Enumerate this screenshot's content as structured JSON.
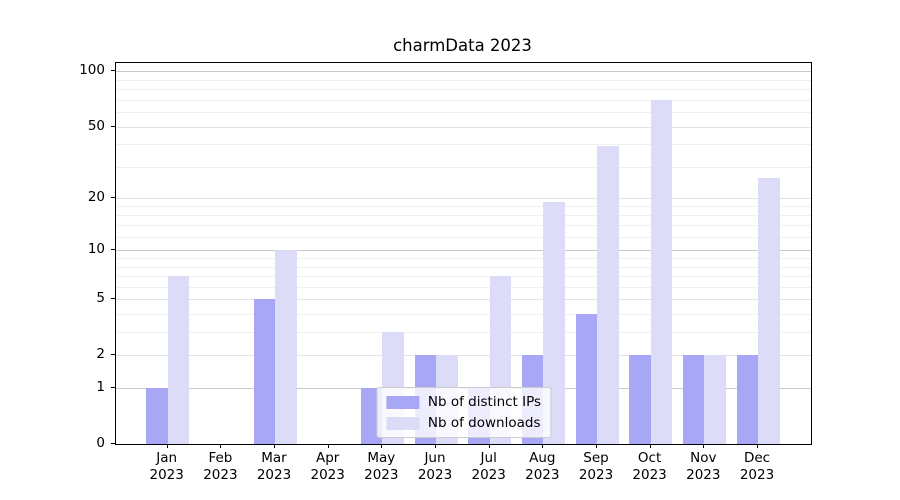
{
  "title": "charmData 2023",
  "chart_data": {
    "type": "bar",
    "title": "charmData 2023",
    "categories": [
      "Jan 2023",
      "Feb 2023",
      "Mar 2023",
      "Apr 2023",
      "May 2023",
      "Jun 2023",
      "Jul 2023",
      "Aug 2023",
      "Sep 2023",
      "Oct 2023",
      "Nov 2023",
      "Dec 2023"
    ],
    "months": [
      "Jan",
      "Feb",
      "Mar",
      "Apr",
      "May",
      "Jun",
      "Jul",
      "Aug",
      "Sep",
      "Oct",
      "Nov",
      "Dec"
    ],
    "year_label": "2023",
    "series": [
      {
        "name": "Nb of distinct IPs",
        "color": "#a7a7f6",
        "values": [
          1,
          0,
          5,
          0,
          1,
          2,
          1,
          2,
          4,
          2,
          2,
          2
        ]
      },
      {
        "name": "Nb of downloads",
        "color": "#dcdcf8",
        "values": [
          7,
          0,
          10,
          0,
          3,
          2,
          7,
          19,
          39,
          70,
          2,
          26
        ]
      }
    ],
    "xlabel": "",
    "ylabel": "",
    "yscale": "log1p",
    "ylim": [
      0,
      111
    ],
    "yticks": [
      0,
      1,
      2,
      5,
      10,
      20,
      50,
      100
    ],
    "ytick_labels": [
      "0",
      "1",
      "2",
      "5",
      "10",
      "20",
      "50",
      "100"
    ],
    "major_grid_values": [
      1,
      10,
      100
    ],
    "mid_grid_values": [
      2,
      5,
      20,
      50
    ],
    "minor_grid_values": [
      3,
      4,
      6,
      7,
      8,
      9,
      12,
      14,
      16,
      18,
      30,
      40,
      60,
      70,
      80,
      90
    ],
    "grid": true,
    "legend_position": "lower center"
  }
}
